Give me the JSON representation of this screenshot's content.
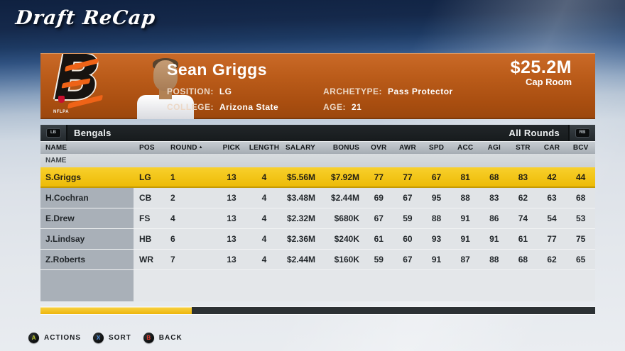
{
  "page_title": "Draft ReCap",
  "player_banner": {
    "team_logo_letter": "B",
    "nflpa_label": "NFLPA",
    "name": "Sean Griggs",
    "position_label": "POSITION:",
    "position_value": "LG",
    "college_label": "COLLEGE:",
    "college_value": "Arizona State",
    "archetype_label": "ARCHETYPE:",
    "archetype_value": "Pass Protector",
    "age_label": "AGE:",
    "age_value": "21",
    "cap_amount": "$25.2M",
    "cap_label": "Cap Room"
  },
  "table": {
    "lb_icon": "LB",
    "rb_icon": "RB",
    "team_tab": "Bengals",
    "rounds_filter": "All Rounds",
    "group_header": "NAME",
    "sort_column": "ROUND",
    "sort_indicator": "▲",
    "columns": [
      "NAME",
      "POS",
      "ROUND",
      "PICK",
      "LENGTH",
      "SALARY",
      "BONUS",
      "OVR",
      "AWR",
      "SPD",
      "ACC",
      "AGI",
      "STR",
      "CAR",
      "BCV"
    ],
    "rows": [
      {
        "selected": true,
        "name": "S.Griggs",
        "pos": "LG",
        "round": "1",
        "pick": "13",
        "length": "4",
        "salary": "$5.56M",
        "bonus": "$7.92M",
        "ovr": "77",
        "awr": "77",
        "spd": "67",
        "acc": "81",
        "agi": "68",
        "str": "83",
        "car": "42",
        "bcv": "44"
      },
      {
        "selected": false,
        "name": "H.Cochran",
        "pos": "CB",
        "round": "2",
        "pick": "13",
        "length": "4",
        "salary": "$3.48M",
        "bonus": "$2.44M",
        "ovr": "69",
        "awr": "67",
        "spd": "95",
        "acc": "88",
        "agi": "83",
        "str": "62",
        "car": "63",
        "bcv": "68"
      },
      {
        "selected": false,
        "name": "E.Drew",
        "pos": "FS",
        "round": "4",
        "pick": "13",
        "length": "4",
        "salary": "$2.32M",
        "bonus": "$680K",
        "ovr": "67",
        "awr": "59",
        "spd": "88",
        "acc": "91",
        "agi": "86",
        "str": "74",
        "car": "54",
        "bcv": "53"
      },
      {
        "selected": false,
        "name": "J.Lindsay",
        "pos": "HB",
        "round": "6",
        "pick": "13",
        "length": "4",
        "salary": "$2.36M",
        "bonus": "$240K",
        "ovr": "61",
        "awr": "60",
        "spd": "93",
        "acc": "91",
        "agi": "91",
        "str": "61",
        "car": "77",
        "bcv": "75"
      },
      {
        "selected": false,
        "name": "Z.Roberts",
        "pos": "WR",
        "round": "7",
        "pick": "13",
        "length": "4",
        "salary": "$2.44M",
        "bonus": "$160K",
        "ovr": "59",
        "awr": "67",
        "spd": "91",
        "acc": "87",
        "agi": "88",
        "str": "68",
        "car": "62",
        "bcv": "65"
      }
    ]
  },
  "scrollbar": {
    "progress_percent": 27.3
  },
  "footer": {
    "buttons": [
      {
        "key": "A",
        "label": "ACTIONS",
        "key_color": "#b8c42c"
      },
      {
        "key": "X",
        "label": "SORT",
        "key_color": "#4b8fe2"
      },
      {
        "key": "B",
        "label": "BACK",
        "key_color": "#e0382a"
      }
    ]
  },
  "colors": {
    "background_navy": "#15294b",
    "banner_orange": "#b65817",
    "highlight_yellow": "#f2c013",
    "scrollbar_fill": "#efb90e",
    "header_gray": "#a9b0b8",
    "bar_dark": "#1d2225"
  }
}
